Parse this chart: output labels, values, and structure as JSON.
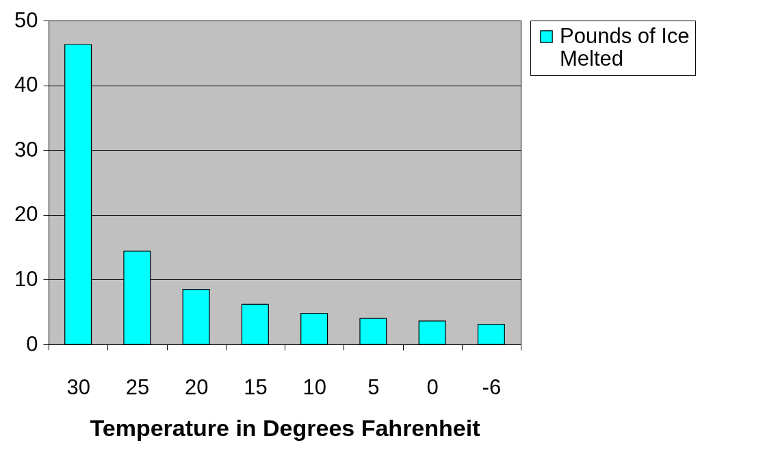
{
  "chart_data": {
    "type": "bar",
    "xlabel": "Temperature in Degrees Fahrenheit",
    "categories": [
      "30",
      "25",
      "20",
      "15",
      "10",
      "5",
      "0",
      "-6"
    ],
    "series": [
      {
        "name": "Pounds of Ice Melted",
        "color": "#00ffff",
        "values": [
          46.3,
          14.4,
          8.5,
          6.2,
          4.8,
          4.0,
          3.6,
          3.1
        ]
      }
    ],
    "ylim": [
      0,
      50
    ],
    "yticks": [
      0,
      10,
      20,
      30,
      40,
      50
    ],
    "grid": "y",
    "legend": "right"
  }
}
